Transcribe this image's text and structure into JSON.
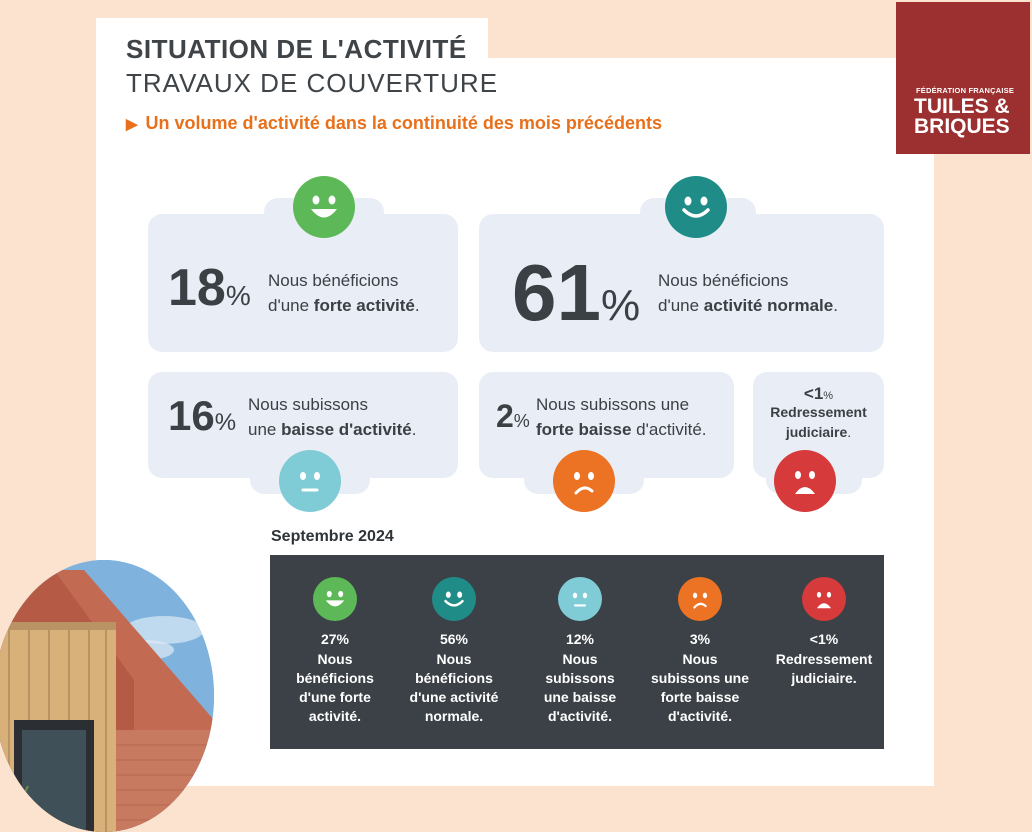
{
  "header": {
    "title_line1": "SITUATION DE L'ACTIVITÉ",
    "title_line2": "TRAVAUX DE COUVERTURE",
    "subtitle": "Un volume d'activité dans la continuité des mois précédents"
  },
  "logo": {
    "small": "FÉDÉRATION FRANÇAISE",
    "line1": "TUILES &",
    "line2": "BRIQUES"
  },
  "stats": [
    {
      "value": "18",
      "unit": "%",
      "text1": "Nous bénéficions",
      "text2_plain": "d'une ",
      "text2_bold": "forte activité",
      "text2_end": ".",
      "color": "#5db957",
      "mood": "big-smile"
    },
    {
      "value": "61",
      "unit": "%",
      "text1": "Nous bénéficions",
      "text2_plain": "d'une ",
      "text2_bold": "activité normale",
      "text2_end": ".",
      "color": "#1f8c88",
      "mood": "smile"
    },
    {
      "value": "16",
      "unit": "%",
      "text1": "Nous subissons",
      "text2_plain": "une ",
      "text2_bold": "baisse d'activité",
      "text2_end": ".",
      "color": "#7fccd7",
      "mood": "neutral"
    },
    {
      "value": "2",
      "unit": "%",
      "text1": "Nous subissons une",
      "text2_plain": "",
      "text2_bold": "forte baisse",
      "text2_end": " d'activité.",
      "color": "#ec7224",
      "mood": "frown"
    },
    {
      "value": "<1",
      "unit": "%",
      "text1": "Redressement",
      "text2_plain": "",
      "text2_bold": "judiciaire",
      "text2_end": ".",
      "color": "#d63a3a",
      "mood": "sad"
    }
  ],
  "previous": {
    "label": "Septembre 2024",
    "items": [
      {
        "pct": "27%",
        "label": "Nous bénéficions d'une forte activité.",
        "lines": [
          "Nous",
          "bénéficions",
          "d'une forte",
          "activité."
        ],
        "color": "#5db957"
      },
      {
        "pct": "56%",
        "label": "Nous bénéficions d'une activité normale.",
        "lines": [
          "Nous",
          "bénéficions",
          "d'une activité",
          "normale."
        ],
        "color": "#1f8c88"
      },
      {
        "pct": "12%",
        "label": "Nous subissons une baisse d'activité.",
        "lines": [
          "Nous",
          "subissons",
          "une baisse",
          "d'activité."
        ],
        "color": "#7fccd7"
      },
      {
        "pct": "3%",
        "label": "Nous subissons une forte baisse d'activité.",
        "lines": [
          "Nous",
          "subissons une",
          "forte baisse",
          "d'activité."
        ],
        "color": "#ec7224"
      },
      {
        "pct": "<1%",
        "label": "Redressement judiciaire.",
        "lines": [
          "Redressement",
          "judiciaire."
        ],
        "color": "#d63a3a"
      }
    ]
  }
}
